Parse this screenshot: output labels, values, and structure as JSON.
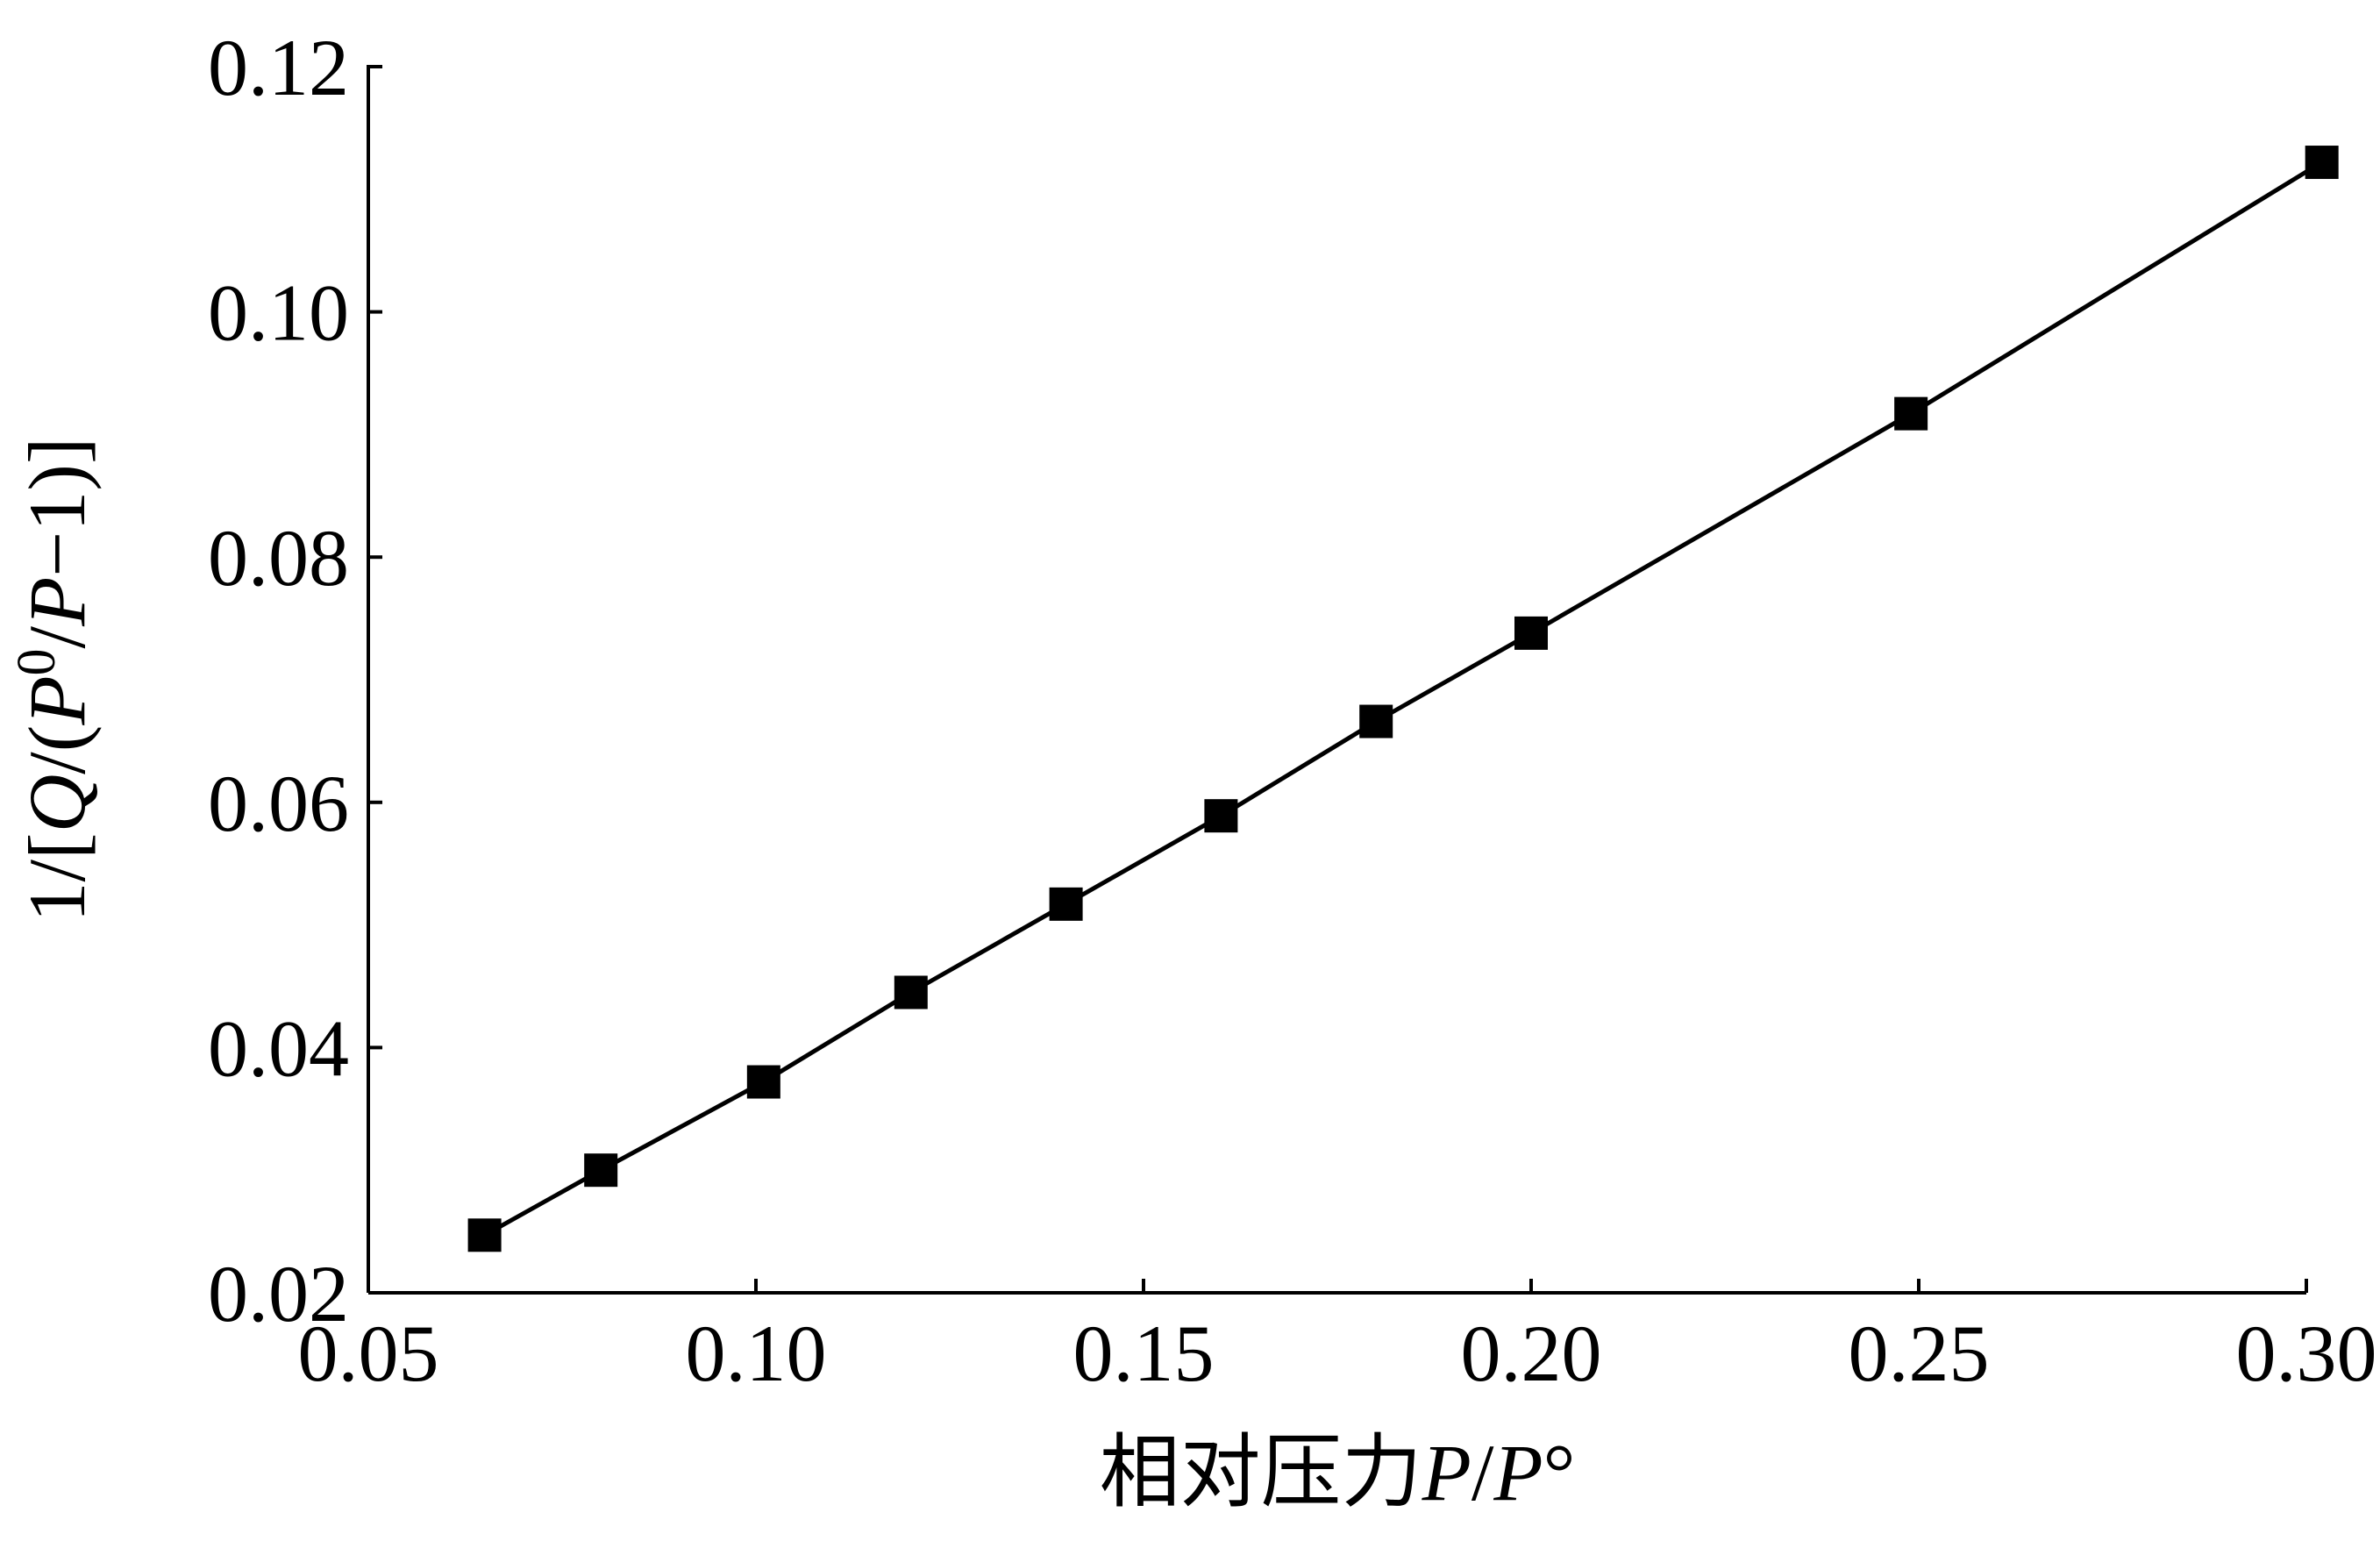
{
  "chart_data": {
    "type": "line",
    "title": "",
    "xlabel": "相对压力P/P°",
    "xlabel_parts": [
      {
        "text": "相对压力",
        "italic": false
      },
      {
        "text": "P",
        "italic": true
      },
      {
        "text": "/",
        "italic": false
      },
      {
        "text": "P",
        "italic": true
      },
      {
        "text": "°",
        "italic": false
      }
    ],
    "ylabel": "1/[Q/(P0/P−1)]",
    "ylabel_parts": [
      {
        "text": "1/[",
        "italic": false,
        "sup": false
      },
      {
        "text": "Q",
        "italic": true,
        "sup": false
      },
      {
        "text": "/(",
        "italic": false,
        "sup": false
      },
      {
        "text": "P",
        "italic": true,
        "sup": false
      },
      {
        "text": "0",
        "italic": false,
        "sup": true
      },
      {
        "text": "/",
        "italic": false,
        "sup": false
      },
      {
        "text": "P",
        "italic": true,
        "sup": false
      },
      {
        "text": "−1)]",
        "italic": false,
        "sup": false
      }
    ],
    "xlim": [
      0.05,
      0.3
    ],
    "ylim": [
      0.02,
      0.12
    ],
    "xticks": [
      0.05,
      0.1,
      0.15,
      0.2,
      0.25,
      0.3
    ],
    "xtick_labels": [
      "0.05",
      "0.10",
      "0.15",
      "0.20",
      "0.25",
      "0.30"
    ],
    "yticks": [
      0.02,
      0.04,
      0.06,
      0.08,
      0.1,
      0.12
    ],
    "ytick_labels": [
      "0.02",
      "0.04",
      "0.06",
      "0.08",
      "0.10",
      "0.12"
    ],
    "grid": false,
    "marker": "square",
    "color": "#000000",
    "series": [
      {
        "x": [
          0.065,
          0.08,
          0.101,
          0.12,
          0.14,
          0.16,
          0.18,
          0.2,
          0.249,
          0.302
        ],
        "y": [
          0.0247,
          0.03,
          0.0372,
          0.0445,
          0.0517,
          0.0589,
          0.0666,
          0.0738,
          0.0917,
          0.1122
        ]
      }
    ]
  }
}
